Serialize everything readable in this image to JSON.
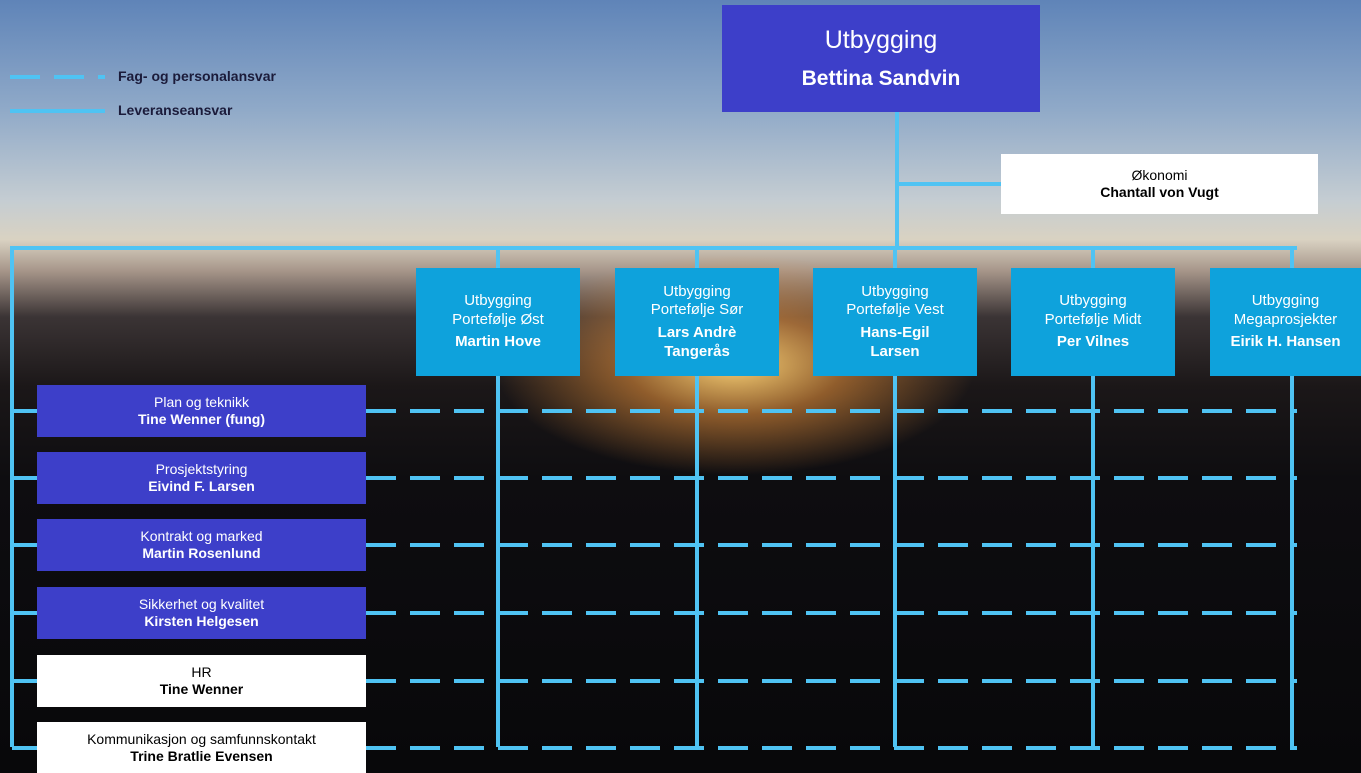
{
  "legend": [
    {
      "label": "Fag- og personalansvar",
      "style": "dashed"
    },
    {
      "label": "Leveranseansvar",
      "style": "solid"
    }
  ],
  "top": {
    "unit": "Utbygging",
    "name": "Bettina Sandvin"
  },
  "staff": {
    "unit": "Økonomi",
    "name": "Chantall von Vugt"
  },
  "portfolios": [
    {
      "unit": [
        "Utbygging",
        "Portefølje Øst"
      ],
      "name": [
        "Martin Hove"
      ]
    },
    {
      "unit": [
        "Utbygging",
        "Portefølje Sør"
      ],
      "name": [
        "Lars Andrè",
        "Tangerås"
      ]
    },
    {
      "unit": [
        "Utbygging",
        "Portefølje Vest"
      ],
      "name": [
        "Hans-Egil",
        "Larsen"
      ]
    },
    {
      "unit": [
        "Utbygging",
        "Portefølje Midt"
      ],
      "name": [
        "Per Vilnes"
      ]
    },
    {
      "unit": [
        "Utbygging",
        "Megaprosjekter"
      ],
      "name": [
        "Eirik H. Hansen"
      ]
    }
  ],
  "functions": [
    {
      "unit": "Plan og teknikk",
      "name": "Tine Wenner  (fung)",
      "color": "purple"
    },
    {
      "unit": "Prosjektstyring",
      "name": "Eivind F. Larsen",
      "color": "purple"
    },
    {
      "unit": "Kontrakt og marked",
      "name": "Martin Rosenlund",
      "color": "purple"
    },
    {
      "unit": "Sikkerhet og kvalitet",
      "name": "Kirsten Helgesen",
      "color": "purple"
    },
    {
      "unit": "HR",
      "name": "Tine Wenner",
      "color": "white"
    },
    {
      "unit": "Kommunikasjon og samfunnskontakt",
      "name": "Trine Bratlie Evensen",
      "color": "white"
    }
  ]
}
